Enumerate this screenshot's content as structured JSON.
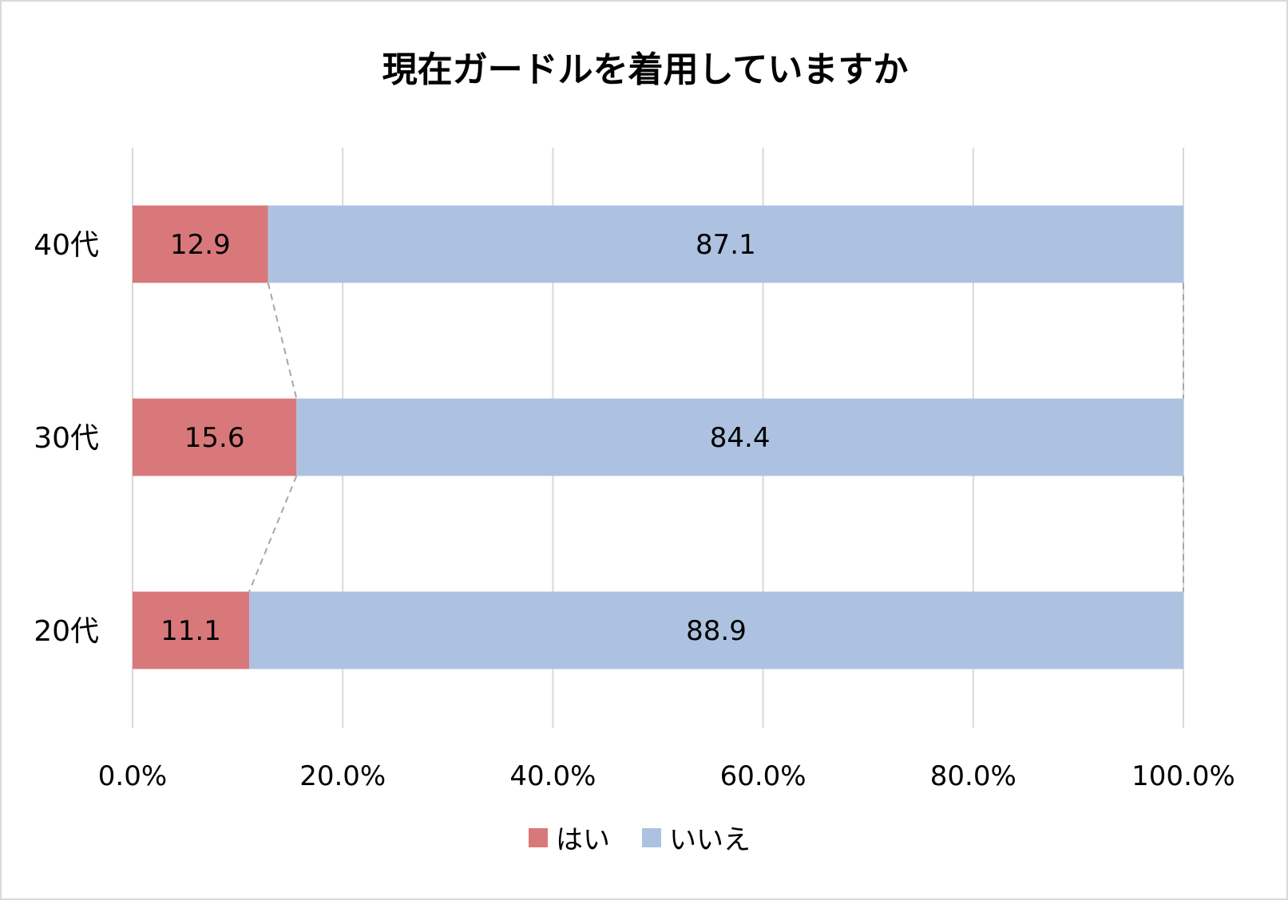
{
  "chart_data": {
    "type": "bar",
    "orientation": "horizontal",
    "stacked": true,
    "title": "現在ガードルを着用していますか",
    "categories": [
      "40代",
      "30代",
      "20代"
    ],
    "series": [
      {
        "name": "はい",
        "values": [
          12.9,
          15.6,
          11.1
        ],
        "color": "#d9787a"
      },
      {
        "name": "いいえ",
        "values": [
          87.1,
          84.4,
          88.9
        ],
        "color": "#adc2e1"
      }
    ],
    "xlim": [
      0,
      100
    ],
    "xticks": [
      "0.0%",
      "20.0%",
      "40.0%",
      "60.0%",
      "80.0%",
      "100.0%"
    ],
    "grid": true,
    "series_lines": true,
    "legend_position": "bottom"
  }
}
